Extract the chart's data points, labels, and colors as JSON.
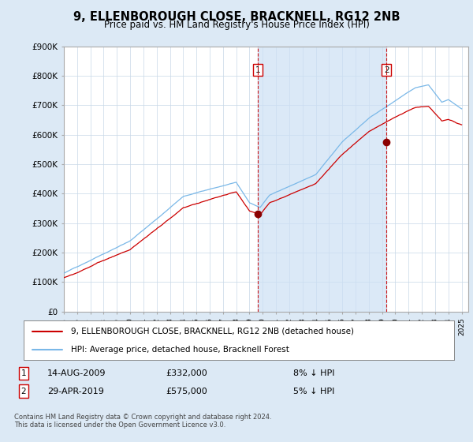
{
  "title": "9, ELLENBOROUGH CLOSE, BRACKNELL, RG12 2NB",
  "subtitle": "Price paid vs. HM Land Registry's House Price Index (HPI)",
  "ylim": [
    0,
    900000
  ],
  "xlim_start": 1995.0,
  "xlim_end": 2025.5,
  "hpi_color": "#7ab8e8",
  "price_color": "#cc0000",
  "transaction1_date": 2009.62,
  "transaction2_date": 2019.33,
  "transaction1_price": 332000,
  "transaction2_price": 575000,
  "shade_color": "#cce0f5",
  "legend_line1": "9, ELLENBOROUGH CLOSE, BRACKNELL, RG12 2NB (detached house)",
  "legend_line2": "HPI: Average price, detached house, Bracknell Forest",
  "table_row1_date": "14-AUG-2009",
  "table_row1_price": "£332,000",
  "table_row1_pct": "8% ↓ HPI",
  "table_row2_date": "29-APR-2019",
  "table_row2_price": "£575,000",
  "table_row2_pct": "5% ↓ HPI",
  "footnote": "Contains HM Land Registry data © Crown copyright and database right 2024.\nThis data is licensed under the Open Government Licence v3.0.",
  "bg_color": "#dce9f5",
  "plot_bg": "#ffffff"
}
